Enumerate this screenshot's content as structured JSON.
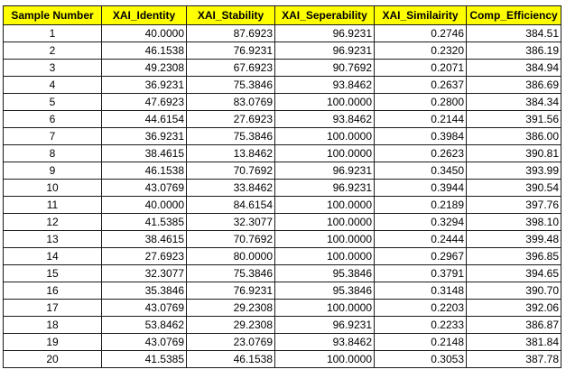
{
  "header_color": "#ffff00",
  "columns": [
    "Sample Number",
    "XAI_Identity",
    "XAI_Stability",
    "XAI_Seperability",
    "XAI_Similairity",
    "Comp_Efficiency"
  ],
  "rows": [
    [
      "1",
      "40.0000",
      "87.6923",
      "96.9231",
      "0.2746",
      "384.51"
    ],
    [
      "2",
      "46.1538",
      "76.9231",
      "96.9231",
      "0.2320",
      "386.19"
    ],
    [
      "3",
      "49.2308",
      "67.6923",
      "90.7692",
      "0.2071",
      "384.94"
    ],
    [
      "4",
      "36.9231",
      "75.3846",
      "93.8462",
      "0.2637",
      "386.69"
    ],
    [
      "5",
      "47.6923",
      "83.0769",
      "100.0000",
      "0.2800",
      "384.34"
    ],
    [
      "6",
      "44.6154",
      "27.6923",
      "93.8462",
      "0.2144",
      "391.56"
    ],
    [
      "7",
      "36.9231",
      "75.3846",
      "100.0000",
      "0.3984",
      "386.00"
    ],
    [
      "8",
      "38.4615",
      "13.8462",
      "100.0000",
      "0.2623",
      "390.81"
    ],
    [
      "9",
      "46.1538",
      "70.7692",
      "96.9231",
      "0.3450",
      "393.99"
    ],
    [
      "10",
      "43.0769",
      "33.8462",
      "96.9231",
      "0.3944",
      "390.54"
    ],
    [
      "11",
      "40.0000",
      "84.6154",
      "100.0000",
      "0.2189",
      "397.76"
    ],
    [
      "12",
      "41.5385",
      "32.3077",
      "100.0000",
      "0.3294",
      "398.10"
    ],
    [
      "13",
      "38.4615",
      "70.7692",
      "100.0000",
      "0.2444",
      "399.48"
    ],
    [
      "14",
      "27.6923",
      "80.0000",
      "100.0000",
      "0.2967",
      "396.85"
    ],
    [
      "15",
      "32.3077",
      "75.3846",
      "95.3846",
      "0.3791",
      "394.65"
    ],
    [
      "16",
      "35.3846",
      "76.9231",
      "95.3846",
      "0.3148",
      "390.70"
    ],
    [
      "17",
      "43.0769",
      "29.2308",
      "100.0000",
      "0.2203",
      "392.06"
    ],
    [
      "18",
      "53.8462",
      "29.2308",
      "96.9231",
      "0.2233",
      "386.87"
    ],
    [
      "19",
      "43.0769",
      "23.0769",
      "93.8462",
      "0.2148",
      "381.84"
    ],
    [
      "20",
      "41.5385",
      "46.1538",
      "100.0000",
      "0.3053",
      "387.78"
    ]
  ]
}
